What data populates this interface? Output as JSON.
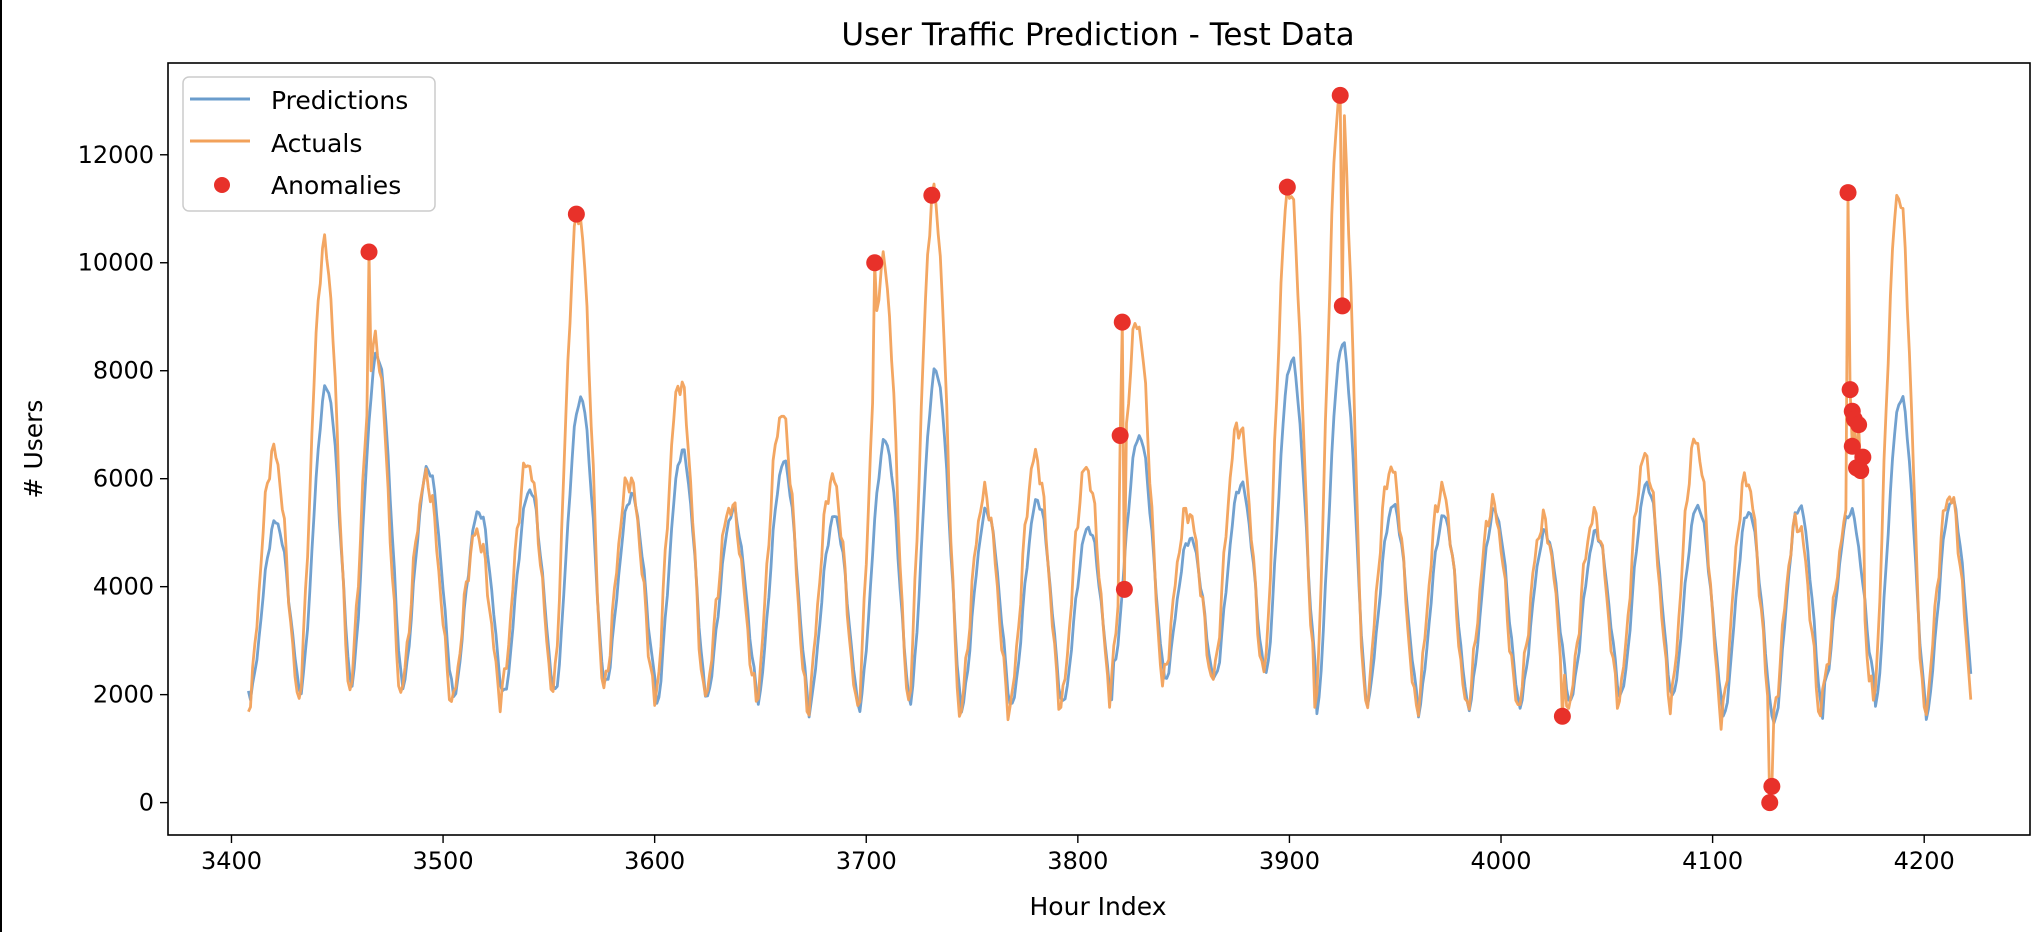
{
  "chart_data": {
    "type": "line",
    "title": "User Traffic Prediction - Test Data",
    "xlabel": "Hour Index",
    "ylabel": "# Users",
    "xlim": [
      3370,
      4250
    ],
    "ylim": [
      -600,
      13700
    ],
    "x_ticks": [
      3400,
      3500,
      3600,
      3700,
      3800,
      3900,
      4000,
      4100,
      4200
    ],
    "y_ticks": [
      0,
      2000,
      4000,
      6000,
      8000,
      10000,
      12000
    ],
    "grid": false,
    "legend_position": "upper-left",
    "x_start": 3408,
    "x_end": 4222,
    "series": [
      {
        "name": "Predictions",
        "color": "#6a9ccc",
        "style": "line",
        "daily_peaks": [
          5200,
          7700,
          8300,
          6200,
          5400,
          5800,
          7500,
          5700,
          6500,
          5400,
          6300,
          5300,
          6700,
          8000,
          5400,
          5600,
          5100,
          6800,
          4900,
          5900,
          8200,
          8500,
          5500,
          5300,
          5400,
          5000,
          5000,
          5900,
          5500,
          5400,
          5500,
          5400,
          7500,
          5600,
          5400,
          6000
        ],
        "daily_troughs": [
          2000,
          2100,
          2200,
          2100,
          1900,
          2000,
          2000,
          2200,
          1800,
          2000,
          1900,
          1700,
          1800,
          1900,
          1700,
          1800,
          1800,
          2500,
          2200,
          2300,
          2400,
          1700,
          1900,
          1700,
          1800,
          1800,
          1900,
          2000,
          1900,
          1500,
          1400,
          2200,
          1800,
          1600,
          2200,
          2800
        ]
      },
      {
        "name": "Actuals",
        "color": "#f2a15a",
        "style": "line",
        "daily_peaks": [
          6500,
          10300,
          8500,
          6000,
          5000,
          6300,
          10900,
          6000,
          7800,
          5500,
          7200,
          6000,
          10000,
          11200,
          5700,
          6400,
          6200,
          8900,
          5400,
          7000,
          11400,
          13100,
          6200,
          5800,
          5500,
          5200,
          5300,
          6400,
          6700,
          6000,
          5200,
          5300,
          11300,
          5700,
          5600,
          5800
        ],
        "daily_troughs": [
          1800,
          2000,
          2100,
          2000,
          1800,
          2100,
          2000,
          2100,
          1800,
          2000,
          1900,
          1700,
          1800,
          1900,
          1600,
          1800,
          1800,
          2400,
          2200,
          2300,
          2400,
          1700,
          1800,
          1700,
          1800,
          1800,
          1800,
          2000,
          1800,
          1500,
          1400,
          2100,
          1800,
          1600,
          2100,
          2700
        ]
      },
      {
        "name": "Anomalies",
        "color": "#e8312a",
        "style": "scatter",
        "points": [
          {
            "x": 3465,
            "y": 10200
          },
          {
            "x": 3563,
            "y": 10900
          },
          {
            "x": 3704,
            "y": 10000
          },
          {
            "x": 3731,
            "y": 11250
          },
          {
            "x": 3821,
            "y": 8900
          },
          {
            "x": 3820,
            "y": 6800
          },
          {
            "x": 3822,
            "y": 3950
          },
          {
            "x": 3899,
            "y": 11400
          },
          {
            "x": 3924,
            "y": 13100
          },
          {
            "x": 3925,
            "y": 9200
          },
          {
            "x": 4029,
            "y": 1600
          },
          {
            "x": 4127,
            "y": 0
          },
          {
            "x": 4128,
            "y": 300
          },
          {
            "x": 4164,
            "y": 11300
          },
          {
            "x": 4165,
            "y": 7650
          },
          {
            "x": 4166,
            "y": 7250
          },
          {
            "x": 4167,
            "y": 7100
          },
          {
            "x": 4169,
            "y": 7000
          },
          {
            "x": 4166,
            "y": 6600
          },
          {
            "x": 4171,
            "y": 6400
          },
          {
            "x": 4168,
            "y": 6200
          },
          {
            "x": 4170,
            "y": 6150
          }
        ]
      }
    ]
  }
}
